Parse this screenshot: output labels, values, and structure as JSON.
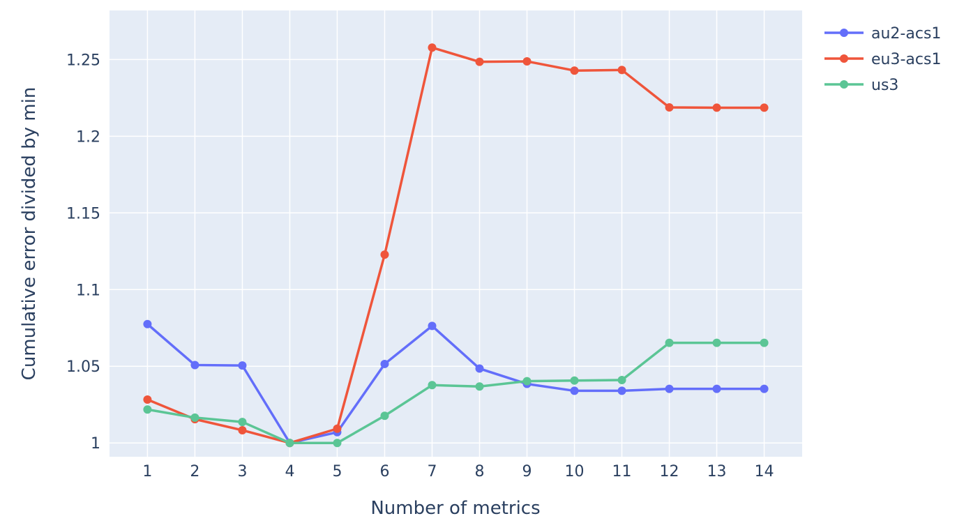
{
  "chart_data": {
    "type": "line",
    "xlabel": "Number of metrics",
    "ylabel": "Cumulative error divided by min",
    "x": [
      1,
      2,
      3,
      4,
      5,
      6,
      7,
      8,
      9,
      10,
      11,
      12,
      13,
      14
    ],
    "x_tick_labels": [
      "1",
      "2",
      "3",
      "4",
      "5",
      "6",
      "7",
      "8",
      "9",
      "10",
      "11",
      "12",
      "13",
      "14"
    ],
    "xlim": [
      0.2,
      14.8
    ],
    "ylim": [
      0.991,
      1.282
    ],
    "y_ticks": [
      1,
      1.05,
      1.1,
      1.15,
      1.2,
      1.25
    ],
    "y_tick_labels": [
      "1",
      "1.05",
      "1.1",
      "1.15",
      "1.2",
      "1.25"
    ],
    "grid": true,
    "legend_position": "top-right",
    "background_color": "#e5ecf6",
    "series": [
      {
        "name": "au2-acs1",
        "color": "#636efa",
        "values": [
          1.0775,
          1.0508,
          1.0505,
          1.0,
          1.007,
          1.0515,
          1.0763,
          1.0485,
          1.0385,
          1.034,
          1.034,
          1.0353,
          1.0353,
          1.0353
        ]
      },
      {
        "name": "eu3-acs1",
        "color": "#ef553b",
        "values": [
          1.0283,
          1.0155,
          1.0083,
          1.0,
          1.0093,
          1.1228,
          1.2578,
          1.2485,
          1.2488,
          1.2428,
          1.2432,
          1.2188,
          1.2186,
          1.2186
        ]
      },
      {
        "name": "us3",
        "color": "#5bc595",
        "values": [
          1.0218,
          1.0165,
          1.0137,
          1.0,
          1.0,
          1.0177,
          1.0377,
          1.0368,
          1.0403,
          1.0407,
          1.041,
          1.0653,
          1.0653,
          1.0653
        ]
      }
    ]
  }
}
